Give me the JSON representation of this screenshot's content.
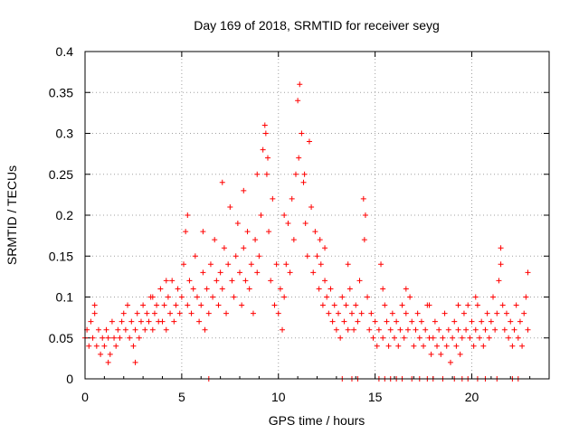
{
  "chart_data": {
    "type": "scatter",
    "title": "Day 169 of 2018, SRMTID for receiver seyg",
    "xlabel": "GPS time / hours",
    "ylabel": "SRMTID / TECUs",
    "xlim": [
      0,
      24
    ],
    "ylim": [
      0,
      0.4
    ],
    "x_ticks": [
      0,
      5,
      10,
      15,
      20
    ],
    "x_tick_labels": [
      "0",
      "5",
      "10",
      "15",
      "20"
    ],
    "y_ticks": [
      0,
      0.05,
      0.1,
      0.15,
      0.2,
      0.25,
      0.3,
      0.35,
      0.4
    ],
    "y_tick_labels": [
      "0",
      "0.05",
      "0.1",
      "0.15",
      "0.2",
      "0.25",
      "0.3",
      "0.35",
      "0.4"
    ],
    "grid": true,
    "marker": "+",
    "color": "#ff0000",
    "series": [
      {
        "name": "SRMTID",
        "points": [
          [
            0.0,
            0.05
          ],
          [
            0.1,
            0.06
          ],
          [
            0.2,
            0.04
          ],
          [
            0.3,
            0.07
          ],
          [
            0.4,
            0.05
          ],
          [
            0.5,
            0.08
          ],
          [
            0.6,
            0.04
          ],
          [
            0.7,
            0.06
          ],
          [
            0.8,
            0.03
          ],
          [
            0.9,
            0.05
          ],
          [
            1.0,
            0.04
          ],
          [
            1.1,
            0.06
          ],
          [
            1.2,
            0.05
          ],
          [
            1.3,
            0.03
          ],
          [
            1.4,
            0.07
          ],
          [
            1.5,
            0.05
          ],
          [
            1.6,
            0.04
          ],
          [
            1.7,
            0.06
          ],
          [
            1.8,
            0.05
          ],
          [
            1.9,
            0.07
          ],
          [
            2.0,
            0.08
          ],
          [
            2.1,
            0.06
          ],
          [
            2.2,
            0.09
          ],
          [
            2.3,
            0.05
          ],
          [
            2.4,
            0.07
          ],
          [
            2.5,
            0.04
          ],
          [
            2.6,
            0.06
          ],
          [
            2.7,
            0.08
          ],
          [
            2.8,
            0.05
          ],
          [
            2.9,
            0.07
          ],
          [
            3.0,
            0.09
          ],
          [
            3.1,
            0.06
          ],
          [
            3.2,
            0.08
          ],
          [
            3.3,
            0.07
          ],
          [
            3.4,
            0.1
          ],
          [
            3.5,
            0.06
          ],
          [
            3.6,
            0.08
          ],
          [
            3.7,
            0.09
          ],
          [
            3.8,
            0.07
          ],
          [
            3.9,
            0.11
          ],
          [
            4.0,
            0.07
          ],
          [
            4.1,
            0.09
          ],
          [
            4.2,
            0.06
          ],
          [
            4.3,
            0.1
          ],
          [
            4.4,
            0.08
          ],
          [
            4.5,
            0.12
          ],
          [
            4.6,
            0.07
          ],
          [
            4.7,
            0.09
          ],
          [
            4.8,
            0.11
          ],
          [
            4.9,
            0.08
          ],
          [
            5.0,
            0.1
          ],
          [
            5.1,
            0.14
          ],
          [
            5.2,
            0.18
          ],
          [
            5.3,
            0.09
          ],
          [
            5.4,
            0.12
          ],
          [
            5.5,
            0.08
          ],
          [
            5.6,
            0.11
          ],
          [
            5.7,
            0.15
          ],
          [
            5.8,
            0.1
          ],
          [
            5.9,
            0.07
          ],
          [
            6.0,
            0.09
          ],
          [
            6.1,
            0.13
          ],
          [
            6.2,
            0.06
          ],
          [
            6.3,
            0.11
          ],
          [
            6.4,
            0.08
          ],
          [
            6.5,
            0.14
          ],
          [
            6.6,
            0.1
          ],
          [
            6.7,
            0.17
          ],
          [
            6.8,
            0.12
          ],
          [
            6.9,
            0.09
          ],
          [
            7.0,
            0.13
          ],
          [
            7.1,
            0.11
          ],
          [
            7.2,
            0.16
          ],
          [
            7.3,
            0.08
          ],
          [
            7.4,
            0.14
          ],
          [
            7.5,
            0.21
          ],
          [
            7.6,
            0.12
          ],
          [
            7.7,
            0.1
          ],
          [
            7.8,
            0.15
          ],
          [
            7.9,
            0.19
          ],
          [
            8.0,
            0.13
          ],
          [
            8.1,
            0.09
          ],
          [
            8.2,
            0.16
          ],
          [
            8.3,
            0.12
          ],
          [
            8.4,
            0.18
          ],
          [
            8.5,
            0.11
          ],
          [
            8.6,
            0.14
          ],
          [
            8.7,
            0.08
          ],
          [
            8.8,
            0.17
          ],
          [
            8.9,
            0.13
          ],
          [
            9.0,
            0.15
          ],
          [
            9.1,
            0.2
          ],
          [
            9.2,
            0.28
          ],
          [
            9.3,
            0.31
          ],
          [
            9.4,
            0.25
          ],
          [
            9.5,
            0.18
          ],
          [
            9.6,
            0.12
          ],
          [
            9.7,
            0.22
          ],
          [
            9.8,
            0.09
          ],
          [
            9.9,
            0.14
          ],
          [
            10.0,
            0.08
          ],
          [
            10.1,
            0.11
          ],
          [
            10.2,
            0.06
          ],
          [
            10.3,
            0.1
          ],
          [
            10.4,
            0.14
          ],
          [
            10.5,
            0.19
          ],
          [
            10.6,
            0.13
          ],
          [
            10.7,
            0.22
          ],
          [
            10.8,
            0.17
          ],
          [
            10.9,
            0.25
          ],
          [
            11.0,
            0.34
          ],
          [
            11.1,
            0.36
          ],
          [
            11.2,
            0.3
          ],
          [
            11.3,
            0.24
          ],
          [
            11.4,
            0.19
          ],
          [
            11.5,
            0.15
          ],
          [
            11.6,
            0.29
          ],
          [
            11.7,
            0.21
          ],
          [
            11.8,
            0.13
          ],
          [
            11.9,
            0.18
          ],
          [
            12.0,
            0.15
          ],
          [
            12.1,
            0.11
          ],
          [
            12.2,
            0.14
          ],
          [
            12.3,
            0.09
          ],
          [
            12.4,
            0.12
          ],
          [
            12.5,
            0.1
          ],
          [
            12.6,
            0.08
          ],
          [
            12.7,
            0.11
          ],
          [
            12.8,
            0.07
          ],
          [
            12.9,
            0.09
          ],
          [
            13.0,
            0.06
          ],
          [
            13.1,
            0.08
          ],
          [
            13.2,
            0.05
          ],
          [
            13.3,
            0.1
          ],
          [
            13.4,
            0.07
          ],
          [
            13.5,
            0.09
          ],
          [
            13.6,
            0.06
          ],
          [
            13.7,
            0.11
          ],
          [
            13.8,
            0.08
          ],
          [
            13.9,
            0.06
          ],
          [
            14.0,
            0.09
          ],
          [
            14.1,
            0.07
          ],
          [
            14.2,
            0.12
          ],
          [
            14.3,
            0.08
          ],
          [
            14.4,
            0.22
          ],
          [
            14.5,
            0.2
          ],
          [
            14.6,
            0.1
          ],
          [
            14.7,
            0.06
          ],
          [
            14.8,
            0.08
          ],
          [
            14.9,
            0.05
          ],
          [
            15.0,
            0.07
          ],
          [
            15.1,
            0.04
          ],
          [
            15.2,
            0.06
          ],
          [
            15.3,
            0.14
          ],
          [
            15.4,
            0.05
          ],
          [
            15.5,
            0.09
          ],
          [
            15.6,
            0.07
          ],
          [
            15.7,
            0.04
          ],
          [
            15.8,
            0.06
          ],
          [
            15.9,
            0.08
          ],
          [
            16.0,
            0.05
          ],
          [
            16.1,
            0.07
          ],
          [
            16.2,
            0.04
          ],
          [
            16.3,
            0.06
          ],
          [
            16.4,
            0.09
          ],
          [
            16.5,
            0.05
          ],
          [
            16.6,
            0.08
          ],
          [
            16.7,
            0.06
          ],
          [
            16.8,
            0.1
          ],
          [
            16.9,
            0.07
          ],
          [
            17.0,
            0.04
          ],
          [
            17.1,
            0.06
          ],
          [
            17.2,
            0.08
          ],
          [
            17.3,
            0.05
          ],
          [
            17.4,
            0.07
          ],
          [
            17.5,
            0.04
          ],
          [
            17.6,
            0.06
          ],
          [
            17.7,
            0.09
          ],
          [
            17.8,
            0.05
          ],
          [
            17.9,
            0.03
          ],
          [
            18.0,
            0.05
          ],
          [
            18.1,
            0.07
          ],
          [
            18.2,
            0.04
          ],
          [
            18.3,
            0.06
          ],
          [
            18.4,
            0.03
          ],
          [
            18.5,
            0.05
          ],
          [
            18.6,
            0.08
          ],
          [
            18.7,
            0.04
          ],
          [
            18.8,
            0.06
          ],
          [
            18.9,
            0.02
          ],
          [
            19.0,
            0.05
          ],
          [
            19.1,
            0.07
          ],
          [
            19.2,
            0.04
          ],
          [
            19.3,
            0.06
          ],
          [
            19.4,
            0.03
          ],
          [
            19.5,
            0.05
          ],
          [
            19.6,
            0.08
          ],
          [
            19.7,
            0.06
          ],
          [
            19.8,
            0.09
          ],
          [
            19.9,
            0.05
          ],
          [
            20.0,
            0.07
          ],
          [
            20.1,
            0.04
          ],
          [
            20.2,
            0.06
          ],
          [
            20.3,
            0.09
          ],
          [
            20.4,
            0.05
          ],
          [
            20.5,
            0.07
          ],
          [
            20.6,
            0.04
          ],
          [
            20.7,
            0.06
          ],
          [
            20.8,
            0.08
          ],
          [
            20.9,
            0.05
          ],
          [
            21.0,
            0.07
          ],
          [
            21.1,
            0.1
          ],
          [
            21.2,
            0.06
          ],
          [
            21.3,
            0.08
          ],
          [
            21.4,
            0.12
          ],
          [
            21.5,
            0.16
          ],
          [
            21.6,
            0.09
          ],
          [
            21.7,
            0.06
          ],
          [
            21.8,
            0.08
          ],
          [
            21.9,
            0.05
          ],
          [
            22.0,
            0.07
          ],
          [
            22.1,
            0.04
          ],
          [
            22.2,
            0.06
          ],
          [
            22.3,
            0.09
          ],
          [
            22.4,
            0.05
          ],
          [
            22.5,
            0.07
          ],
          [
            22.6,
            0.04
          ],
          [
            22.7,
            0.08
          ],
          [
            22.8,
            0.1
          ],
          [
            22.9,
            0.06
          ],
          [
            0.5,
            0.09
          ],
          [
            1.2,
            0.02
          ],
          [
            2.6,
            0.02
          ],
          [
            3.5,
            0.1
          ],
          [
            4.2,
            0.12
          ],
          [
            5.3,
            0.2
          ],
          [
            6.1,
            0.18
          ],
          [
            7.1,
            0.24
          ],
          [
            8.2,
            0.23
          ],
          [
            8.9,
            0.25
          ],
          [
            9.35,
            0.3
          ],
          [
            9.45,
            0.27
          ],
          [
            10.3,
            0.2
          ],
          [
            11.05,
            0.27
          ],
          [
            11.35,
            0.25
          ],
          [
            12.15,
            0.17
          ],
          [
            12.4,
            0.16
          ],
          [
            13.6,
            0.14
          ],
          [
            14.45,
            0.17
          ],
          [
            15.4,
            0.11
          ],
          [
            16.6,
            0.11
          ],
          [
            17.8,
            0.09
          ],
          [
            19.3,
            0.09
          ],
          [
            20.2,
            0.1
          ],
          [
            21.5,
            0.14
          ],
          [
            22.9,
            0.13
          ],
          [
            6.4,
            0.0
          ],
          [
            13.3,
            0.0
          ],
          [
            13.8,
            0.0
          ],
          [
            14.1,
            0.0
          ],
          [
            15.2,
            0.0
          ],
          [
            15.5,
            0.0
          ],
          [
            15.8,
            0.0
          ],
          [
            16.1,
            0.0
          ],
          [
            16.4,
            0.0
          ],
          [
            16.9,
            0.0
          ],
          [
            17.3,
            0.0
          ],
          [
            17.7,
            0.0
          ],
          [
            18.0,
            0.0
          ],
          [
            18.5,
            0.0
          ],
          [
            19.1,
            0.0
          ],
          [
            19.5,
            0.0
          ],
          [
            19.8,
            0.0
          ],
          [
            20.3,
            0.0
          ],
          [
            20.7,
            0.0
          ],
          [
            21.3,
            0.0
          ],
          [
            22.1,
            0.0
          ],
          [
            22.4,
            0.0
          ]
        ]
      }
    ]
  }
}
